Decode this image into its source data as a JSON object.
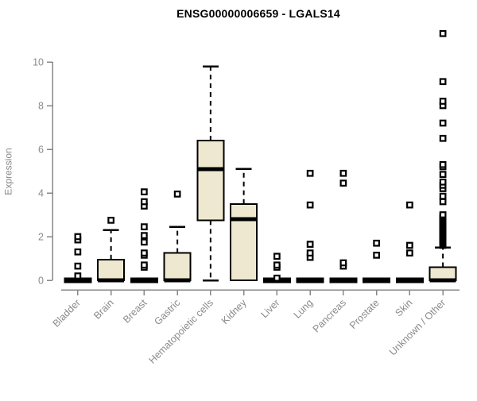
{
  "chart_data": {
    "type": "boxplot",
    "title": "ENSG00000006659 - LGALS14",
    "xlabel": "",
    "ylabel": "Expression",
    "ylim": [
      0,
      11.5
    ],
    "yticks": [
      0,
      2,
      4,
      6,
      8,
      10
    ],
    "grid": false,
    "legend": false,
    "whisker_style": "dashed",
    "outlier_marker": "open-square",
    "colors": {
      "box_fill": "#EEE8D0",
      "box_border": "#000000",
      "median": "#000000",
      "whisker": "#000000",
      "outlier": "#000000",
      "outlier_fill": "#FFFFFF",
      "axis": "#878787",
      "tick_label": "#8A8A8A",
      "title": "#000000",
      "background": "#FFFFFF"
    },
    "categories": [
      "Bladder",
      "Brain",
      "Breast",
      "Gastric",
      "Hematopoietic cells",
      "Kidney",
      "Liver",
      "Lung",
      "Pancreas",
      "Prostate",
      "Skin",
      "Unknown / Other"
    ],
    "series": [
      {
        "category": "Bladder",
        "q1": 0,
        "median": 0,
        "q3": 0,
        "whisker_low": 0,
        "whisker_high": 0,
        "outliers": [
          0.2,
          0.65,
          1.3,
          1.85,
          2.0
        ]
      },
      {
        "category": "Brain",
        "q1": 0,
        "median": 0,
        "q3": 0.95,
        "whisker_low": 0,
        "whisker_high": 2.3,
        "outliers": [
          2.75
        ]
      },
      {
        "category": "Breast",
        "q1": 0,
        "median": 0,
        "q3": 0,
        "whisker_low": 0,
        "whisker_high": 0,
        "outliers": [
          0.6,
          0.7,
          1.15,
          1.25,
          1.75,
          2.05,
          2.45,
          3.4,
          3.6,
          4.05
        ]
      },
      {
        "category": "Gastric",
        "q1": 0,
        "median": 0,
        "q3": 1.25,
        "whisker_low": 0,
        "whisker_high": 2.45,
        "outliers": [
          3.95
        ]
      },
      {
        "category": "Hematopoietic cells",
        "q1": 2.75,
        "median": 5.1,
        "q3": 6.4,
        "whisker_low": 0,
        "whisker_high": 9.8,
        "outliers": []
      },
      {
        "category": "Kidney",
        "q1": 0,
        "median": 2.8,
        "q3": 3.5,
        "whisker_low": 0,
        "whisker_high": 5.1,
        "outliers": []
      },
      {
        "category": "Liver",
        "q1": 0,
        "median": 0,
        "q3": 0,
        "whisker_low": 0,
        "whisker_high": 0,
        "outliers": [
          0.1,
          0.6,
          0.7,
          1.1
        ]
      },
      {
        "category": "Lung",
        "q1": 0,
        "median": 0,
        "q3": 0,
        "whisker_low": 0,
        "whisker_high": 0,
        "outliers": [
          1.05,
          1.25,
          1.65,
          3.45,
          4.9
        ]
      },
      {
        "category": "Pancreas",
        "q1": 0,
        "median": 0,
        "q3": 0,
        "whisker_low": 0,
        "whisker_high": 0,
        "outliers": [
          0.65,
          0.8,
          4.45,
          4.9
        ]
      },
      {
        "category": "Prostate",
        "q1": 0,
        "median": 0,
        "q3": 0,
        "whisker_low": 0,
        "whisker_high": 0,
        "outliers": [
          1.15,
          1.7
        ]
      },
      {
        "category": "Skin",
        "q1": 0,
        "median": 0,
        "q3": 0,
        "whisker_low": 0,
        "whisker_high": 0,
        "outliers": [
          1.25,
          1.6,
          3.45
        ]
      },
      {
        "category": "Unknown / Other",
        "q1": 0,
        "median": 0,
        "q3": 0.6,
        "whisker_low": 0,
        "whisker_high": 1.5,
        "outliers": [
          1.6,
          1.65,
          1.7,
          1.75,
          1.8,
          1.85,
          1.9,
          1.95,
          2.0,
          2.05,
          2.1,
          2.15,
          2.2,
          2.25,
          2.3,
          2.35,
          2.4,
          2.45,
          2.5,
          2.55,
          2.6,
          2.65,
          2.7,
          2.75,
          2.8,
          2.85,
          2.9,
          2.95,
          3.0,
          3.6,
          3.85,
          4.2,
          4.35,
          4.5,
          4.85,
          5.2,
          5.3,
          6.5,
          7.2,
          8.0,
          8.2,
          9.1,
          11.3
        ]
      }
    ]
  }
}
